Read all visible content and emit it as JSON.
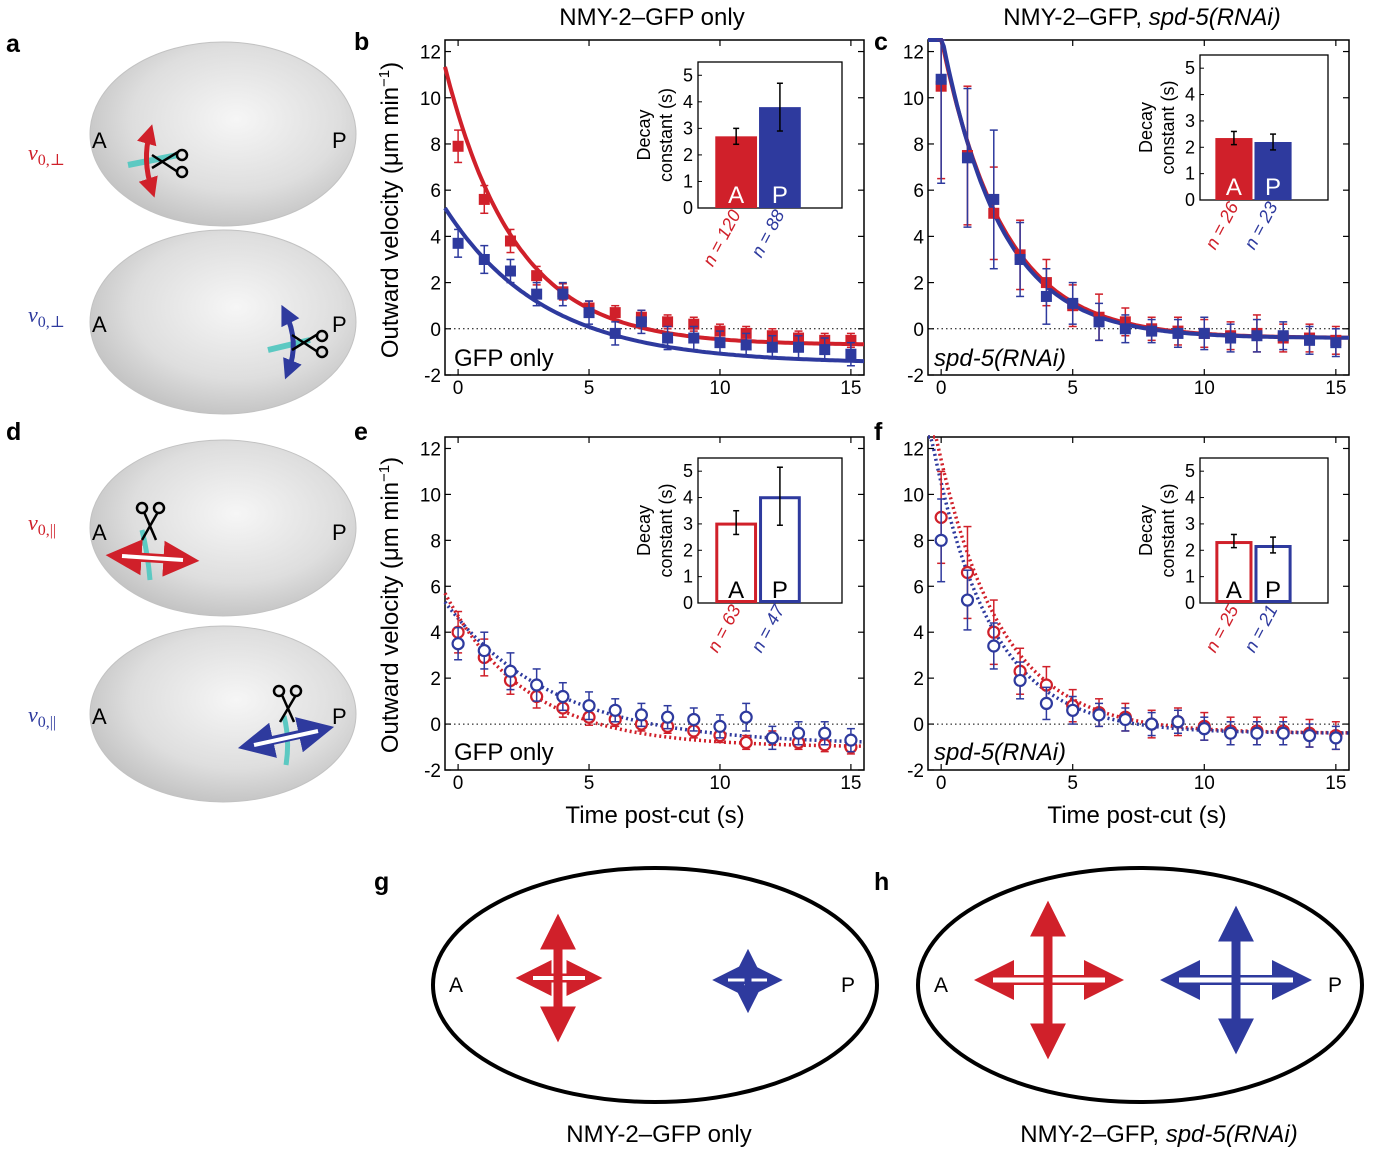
{
  "colors": {
    "anterior": "#d0202a",
    "posterior": "#2e3a9e",
    "cut_line": "#5cc9c2",
    "embryo": "#d4d4d4"
  },
  "panel_labels": {
    "a": "a",
    "b": "b",
    "c": "c",
    "d": "d",
    "e": "e",
    "f": "f",
    "g": "g",
    "h": "h"
  },
  "headers": {
    "left": "NMY-2–GFP only",
    "right_prefix": "NMY-2–GFP, ",
    "right_italic": "spd-5(RNAi)"
  },
  "bottom_captions": {
    "g": "NMY-2–GFP only",
    "h_prefix": "NMY-2–GFP, ",
    "h_italic": "spd-5(RNAi)"
  },
  "embryo_labels": {
    "A": "A",
    "P": "P"
  },
  "velocity_labels": {
    "perp_main": "v",
    "perp_sub": "0,⊥",
    "par_main": "v",
    "par_sub": "0,||"
  },
  "axes": {
    "ylabel": "Outward velocity (μm min",
    "ylabel_sup": "−1",
    "ylabel_close": ")",
    "xlabel": "Time post-cut (s)",
    "xlim": [
      -0.5,
      15.5
    ],
    "ylim": [
      -2,
      12.5
    ],
    "xticks": [
      0,
      5,
      10,
      15
    ],
    "yticks": [
      -2,
      0,
      2,
      4,
      6,
      8,
      10,
      12
    ],
    "inset_ylabel_1": "Decay",
    "inset_ylabel_2": "constant (s)",
    "inset_ylim": [
      0,
      5.5
    ],
    "inset_yticks": [
      0,
      1,
      2,
      3,
      4,
      5
    ]
  },
  "chart_data": [
    {
      "id": "b",
      "type": "scatter",
      "marker": "filled-square",
      "fit": "solid",
      "condition_label": "GFP only",
      "condition_italic": false,
      "x": [
        0,
        1,
        2,
        3,
        4,
        5,
        6,
        7,
        8,
        9,
        10,
        11,
        12,
        13,
        14,
        15
      ],
      "series": [
        {
          "name": "A",
          "color": "#d0202a",
          "y": [
            7.9,
            5.6,
            3.8,
            2.3,
            1.6,
            0.9,
            0.7,
            0.5,
            0.3,
            0.2,
            -0.1,
            -0.2,
            -0.3,
            -0.4,
            -0.5,
            -0.5
          ],
          "err": [
            0.7,
            0.6,
            0.5,
            0.4,
            0.35,
            0.3,
            0.3,
            0.3,
            0.3,
            0.3,
            0.3,
            0.3,
            0.3,
            0.3,
            0.3,
            0.3
          ],
          "fit": {
            "a": 10.0,
            "tau": 2.7,
            "c": -0.7
          }
        },
        {
          "name": "P",
          "color": "#2e3a9e",
          "y": [
            3.7,
            3.0,
            2.5,
            1.5,
            1.5,
            0.7,
            -0.2,
            0.3,
            -0.4,
            -0.4,
            -0.6,
            -0.7,
            -0.8,
            -0.8,
            -0.9,
            -1.1
          ],
          "err": [
            0.6,
            0.6,
            0.5,
            0.5,
            0.5,
            0.5,
            0.5,
            0.5,
            0.5,
            0.5,
            0.5,
            0.5,
            0.5,
            0.5,
            0.5,
            0.5
          ],
          "fit": {
            "a": 5.9,
            "tau": 3.8,
            "c": -1.5
          }
        }
      ],
      "inset": {
        "type": "bar",
        "filled": true,
        "categories": [
          "A",
          "P"
        ],
        "values": [
          2.7,
          3.8
        ],
        "errors": [
          0.3,
          0.9
        ],
        "n_labels": [
          "n = 120",
          "n = 88"
        ]
      }
    },
    {
      "id": "c",
      "type": "scatter",
      "marker": "filled-square",
      "fit": "solid",
      "condition_label": "spd-5(RNAi)",
      "condition_italic": true,
      "x": [
        0,
        1,
        2,
        3,
        4,
        5,
        6,
        7,
        8,
        9,
        10,
        11,
        12,
        13,
        14,
        15
      ],
      "series": [
        {
          "name": "A",
          "color": "#d0202a",
          "y": [
            10.5,
            7.5,
            5.0,
            3.2,
            2.0,
            1.0,
            0.5,
            0.3,
            0.0,
            -0.1,
            -0.2,
            -0.3,
            -0.2,
            -0.4,
            -0.4,
            -0.5
          ],
          "err": [
            4.0,
            3.0,
            2.0,
            1.5,
            1.0,
            0.9,
            1.0,
            0.6,
            0.5,
            0.6,
            0.6,
            0.6,
            0.8,
            0.6,
            0.6,
            0.6
          ],
          "fit": {
            "a": 13.0,
            "tau": 2.35,
            "c": -0.4
          }
        },
        {
          "name": "P",
          "color": "#2e3a9e",
          "y": [
            10.8,
            7.4,
            5.6,
            3.0,
            1.4,
            1.1,
            0.3,
            0.0,
            -0.1,
            -0.2,
            -0.2,
            -0.4,
            -0.3,
            -0.3,
            -0.5,
            -0.6
          ],
          "err": [
            4.5,
            3.0,
            3.0,
            1.6,
            1.2,
            0.9,
            0.8,
            0.6,
            0.5,
            0.6,
            0.7,
            0.6,
            0.7,
            0.6,
            0.6,
            0.6
          ],
          "fit": {
            "a": 13.2,
            "tau": 2.25,
            "c": -0.4
          }
        }
      ],
      "inset": {
        "type": "bar",
        "filled": true,
        "categories": [
          "A",
          "P"
        ],
        "values": [
          2.35,
          2.2
        ],
        "errors": [
          0.25,
          0.3
        ],
        "n_labels": [
          "n = 26",
          "n = 23"
        ]
      }
    },
    {
      "id": "e",
      "type": "scatter",
      "marker": "open-circle",
      "fit": "dotted",
      "condition_label": "GFP only",
      "condition_italic": false,
      "x": [
        0,
        1,
        2,
        3,
        4,
        5,
        6,
        7,
        8,
        9,
        10,
        11,
        12,
        13,
        14,
        15
      ],
      "series": [
        {
          "name": "A",
          "color": "#d0202a",
          "y": [
            4.0,
            2.9,
            1.9,
            1.2,
            0.7,
            0.3,
            0.2,
            0.0,
            -0.1,
            -0.3,
            -0.5,
            -0.8,
            -0.6,
            -0.8,
            -0.9,
            -1.0
          ],
          "err": [
            0.9,
            0.8,
            0.6,
            0.5,
            0.4,
            0.35,
            0.3,
            0.3,
            0.3,
            0.3,
            0.3,
            0.3,
            0.3,
            0.3,
            0.3,
            0.3
          ],
          "fit": {
            "a": 5.7,
            "tau": 3.1,
            "c": -1.0
          }
        },
        {
          "name": "P",
          "color": "#2e3a9e",
          "y": [
            3.5,
            3.2,
            2.3,
            1.7,
            1.2,
            0.8,
            0.6,
            0.4,
            0.3,
            0.2,
            -0.1,
            0.3,
            -0.6,
            -0.4,
            -0.4,
            -0.7
          ],
          "err": [
            0.7,
            0.8,
            0.8,
            0.7,
            0.6,
            0.6,
            0.5,
            0.5,
            0.5,
            0.5,
            0.5,
            0.6,
            0.5,
            0.5,
            0.5,
            0.5
          ],
          "fit": {
            "a": 5.5,
            "tau": 4.1,
            "c": -0.9
          }
        }
      ],
      "inset": {
        "type": "bar",
        "filled": false,
        "categories": [
          "A",
          "P"
        ],
        "values": [
          3.05,
          4.05
        ],
        "errors": [
          0.45,
          1.1
        ],
        "n_labels": [
          "n = 63",
          "n = 47"
        ]
      }
    },
    {
      "id": "f",
      "type": "scatter",
      "marker": "open-circle",
      "fit": "dotted",
      "condition_label": "spd-5(RNAi)",
      "condition_italic": true,
      "x": [
        0,
        1,
        2,
        3,
        4,
        5,
        6,
        7,
        8,
        9,
        10,
        11,
        12,
        13,
        14,
        15
      ],
      "series": [
        {
          "name": "A",
          "color": "#d0202a",
          "y": [
            9.0,
            6.6,
            4.0,
            2.3,
            1.7,
            0.8,
            0.5,
            0.3,
            0.0,
            0.1,
            -0.1,
            -0.3,
            -0.3,
            -0.3,
            -0.4,
            -0.5
          ],
          "err": [
            2.0,
            2.0,
            1.4,
            1.0,
            0.8,
            0.7,
            0.6,
            0.6,
            0.6,
            0.6,
            0.6,
            0.6,
            0.6,
            0.6,
            0.6,
            0.6
          ],
          "fit": {
            "a": 11.9,
            "tau": 2.4,
            "c": -0.4
          }
        },
        {
          "name": "P",
          "color": "#2e3a9e",
          "y": [
            8.0,
            5.4,
            3.4,
            1.9,
            0.9,
            0.6,
            0.4,
            0.2,
            0.0,
            0.1,
            -0.2,
            -0.4,
            -0.4,
            -0.4,
            -0.5,
            -0.6
          ],
          "err": [
            1.8,
            1.3,
            1.0,
            0.8,
            0.7,
            0.6,
            0.5,
            0.5,
            0.5,
            0.5,
            0.5,
            0.5,
            0.5,
            0.5,
            0.5,
            0.5
          ],
          "fit": {
            "a": 10.9,
            "tau": 2.25,
            "c": -0.4
          }
        }
      ],
      "inset": {
        "type": "bar",
        "filled": false,
        "categories": [
          "A",
          "P"
        ],
        "values": [
          2.35,
          2.2
        ],
        "errors": [
          0.25,
          0.3
        ],
        "n_labels": [
          "n = 25",
          "n = 21"
        ]
      }
    }
  ]
}
